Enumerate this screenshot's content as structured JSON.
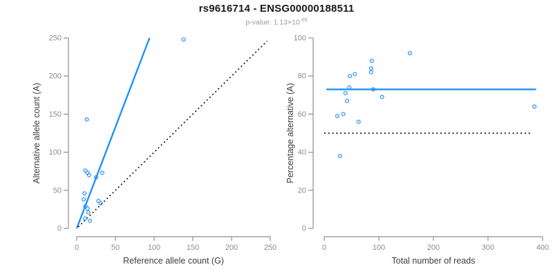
{
  "header": {
    "title": "rs9616714 - ENSG00000188511",
    "subtitle_prefix": "p-value: 1.13×10",
    "subtitle_exponent": "-65"
  },
  "colors": {
    "accent": "#1E90FF",
    "dotted_line": "#000000",
    "axis_line": "#8e8e8e",
    "tick_label": "#8a8a8a",
    "axis_title": "#3d3d3d"
  },
  "chart_data": [
    {
      "name": "allele-counts-scatter",
      "type": "scatter",
      "xlabel": "Reference allele count (G)",
      "ylabel": "Alternative allele count (A)",
      "xlim": [
        0,
        250
      ],
      "ylim": [
        0,
        250
      ],
      "xticks": [
        0,
        50,
        100,
        150,
        200,
        250
      ],
      "yticks": [
        0,
        50,
        100,
        150,
        200,
        250
      ],
      "points": [
        [
          11,
          76
        ],
        [
          14,
          73
        ],
        [
          16,
          70
        ],
        [
          33,
          73
        ],
        [
          25,
          67
        ],
        [
          10,
          46
        ],
        [
          9,
          38
        ],
        [
          28,
          36
        ],
        [
          31,
          33
        ],
        [
          11,
          29
        ],
        [
          14,
          26
        ],
        [
          15,
          21
        ],
        [
          11,
          13
        ],
        [
          17,
          10
        ],
        [
          13,
          143
        ],
        [
          138,
          248
        ]
      ],
      "lines": [
        {
          "name": "regression-line",
          "style": "solid",
          "color_key": "accent",
          "from": [
            0,
            0
          ],
          "to": [
            94,
            250
          ]
        },
        {
          "name": "identity-line",
          "style": "dotted",
          "color_key": "dotted_line",
          "from": [
            2,
            2
          ],
          "to": [
            246,
            246
          ]
        }
      ]
    },
    {
      "name": "percentage-alternative-scatter",
      "type": "scatter",
      "xlabel": "Total number of reads",
      "ylabel": "Percentage alternative (A)",
      "xlim": [
        0,
        400
      ],
      "ylim": [
        0,
        100
      ],
      "xticks": [
        0,
        100,
        200,
        300,
        400
      ],
      "yticks": [
        0,
        20,
        40,
        60,
        80,
        100
      ],
      "points": [
        [
          157,
          92
        ],
        [
          87,
          88
        ],
        [
          86,
          84
        ],
        [
          86,
          82
        ],
        [
          56,
          81
        ],
        [
          47,
          80
        ],
        [
          46,
          74
        ],
        [
          90,
          73
        ],
        [
          39,
          71
        ],
        [
          42,
          67
        ],
        [
          106,
          69
        ],
        [
          24,
          59
        ],
        [
          35,
          60
        ],
        [
          63,
          56
        ],
        [
          29,
          38
        ],
        [
          385,
          64
        ]
      ],
      "lines": [
        {
          "name": "mean-line",
          "style": "solid",
          "color_key": "accent",
          "from": [
            4,
            73
          ],
          "to": [
            388,
            73
          ]
        },
        {
          "name": "fifty-percent-line",
          "style": "dotted",
          "color_key": "dotted_line",
          "from": [
            0,
            50
          ],
          "to": [
            378,
            50
          ]
        }
      ]
    }
  ]
}
